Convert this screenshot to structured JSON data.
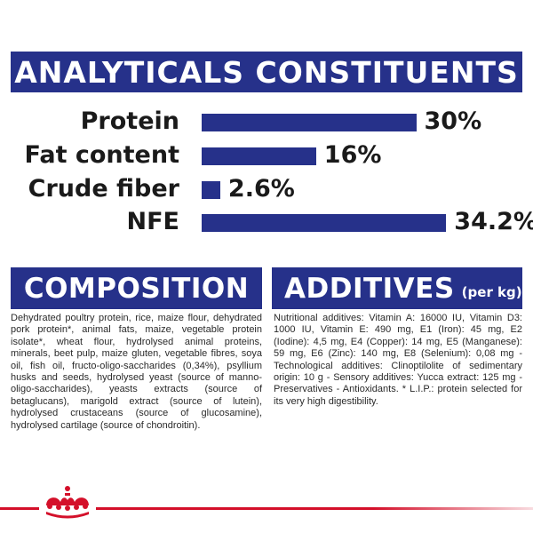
{
  "header": {
    "title": "ANALYTICALS CONSTITUENTS"
  },
  "constituents": [
    {
      "label": "Protein",
      "value": "30%",
      "percent": 30
    },
    {
      "label": "Fat content",
      "value": "16%",
      "percent": 16
    },
    {
      "label": "Crude fiber",
      "value": "2.6%",
      "percent": 2.6
    },
    {
      "label": "NFE",
      "value": "34.2%",
      "percent": 34.2
    }
  ],
  "composition": {
    "title": "COMPOSITION",
    "text": "Dehydrated poultry protein, rice, maize flour, dehydrated pork protein*, animal fats, maize, vegetable protein isolate*, wheat flour, hydrolysed animal proteins, minerals, beet pulp, maize gluten, vegetable fibres, soya oil, fish oil, fructo-oligo-saccharides (0,34%), psyllium husks and seeds, hydrolysed yeast (source of manno-oligo-saccharides), yeasts extracts (source of betaglucans), marigold extract (source of lutein), hydrolysed crustaceans (source of glucosamine), hydrolysed cartilage (source of chondroitin)."
  },
  "additives": {
    "title": "ADDITIVES",
    "unit": "(per kg)",
    "text": "Nutritional additives: Vitamin A: 16000 IU, Vitamin D3: 1000 IU, Vitamin E: 490 mg, E1 (Iron): 45 mg, E2 (Iodine): 4,5 mg, E4 (Copper): 14 mg, E5 (Manganese): 59 mg, E6 (Zinc): 140 mg, E8 (Selenium): 0,08 mg - Technological additives: Clinoptilolite of sedimentary origin: 10 g - Sensory additives: Yucca extract: 125 mg - Preservatives - Antioxidants. * L.I.P.: protein selected for its very high digestibility."
  },
  "colors": {
    "brand_blue": "#26318a",
    "brand_red": "#d4102a"
  },
  "icons": {
    "logo": "crown-logo"
  }
}
